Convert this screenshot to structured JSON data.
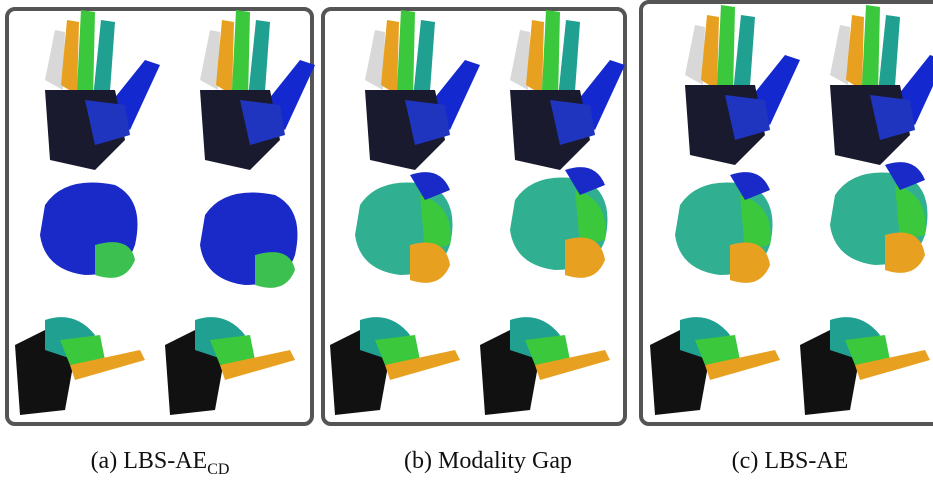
{
  "captions": [
    {
      "label": "(a) LBS-AE",
      "subscript": "CD"
    },
    {
      "label": "(b) Modality Gap"
    },
    {
      "label": "(c) LBS-AE"
    }
  ]
}
